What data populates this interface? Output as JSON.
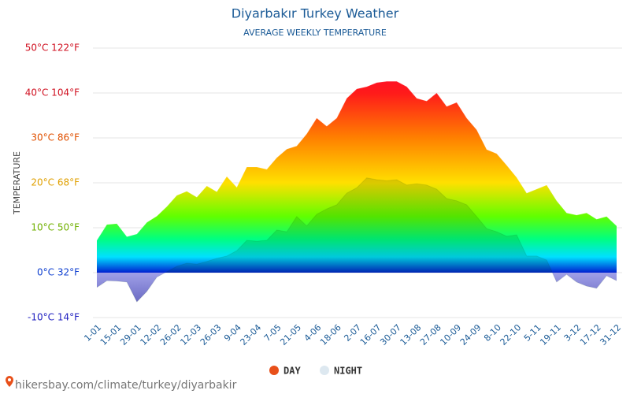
{
  "chart_data": {
    "type": "area",
    "title": "Diyarbakır Turkey Weather",
    "subtitle": "AVERAGE WEEKLY TEMPERATURE",
    "y_label": "TEMPERATURE",
    "categories": [
      "1-01",
      null,
      "15-01",
      null,
      "29-01",
      null,
      "12-02",
      null,
      "26-02",
      null,
      "12-03",
      null,
      "26-03",
      null,
      "9-04",
      null,
      "23-04",
      null,
      "7-05",
      null,
      "21-05",
      null,
      "4-06",
      null,
      "18-06",
      null,
      "2-07",
      null,
      "16-07",
      null,
      "30-07",
      null,
      "13-08",
      null,
      "27-08",
      null,
      "10-09",
      null,
      "24-09",
      null,
      "8-10",
      null,
      "22-10",
      null,
      "5-11",
      null,
      "19-11",
      null,
      "3-12",
      null,
      "17-12",
      null,
      "31-12"
    ],
    "series": [
      {
        "name": "DAY",
        "color": "#e8501a",
        "values": [
          7.2,
          10.7,
          10.9,
          8,
          8.6,
          11.2,
          12.6,
          14.7,
          17.2,
          18.1,
          16.8,
          19.3,
          18,
          21.4,
          19,
          23.5,
          23.5,
          23,
          25.6,
          27.5,
          28.2,
          30.9,
          34.4,
          32.6,
          34.4,
          38.8,
          40.9,
          41.4,
          42.3,
          42.6,
          42.6,
          41.4,
          38.8,
          38.2,
          40,
          37,
          37.9,
          34.4,
          31.8,
          27.4,
          26.5,
          23.9,
          21.2,
          17.7,
          18.6,
          19.5,
          16,
          13.3,
          12.8,
          13.3,
          11.9,
          12.5,
          10.4
        ]
      },
      {
        "name": "NIGHT",
        "color": "#dde8f0",
        "values": [
          -3.3,
          -1.8,
          -1.9,
          -2.1,
          -6.5,
          -4.2,
          -1,
          0.2,
          1.4,
          2.1,
          1.9,
          2.5,
          3.2,
          3.7,
          4.9,
          7.2,
          7,
          7.2,
          9.5,
          9.1,
          12.5,
          10.4,
          13,
          14.2,
          15.1,
          17.7,
          18.9,
          21.1,
          20.7,
          20.5,
          20.7,
          19.5,
          19.8,
          19.5,
          18.6,
          16.5,
          16,
          15.1,
          12.5,
          9.8,
          9.1,
          8.1,
          8.4,
          3.7,
          3.7,
          2.8,
          -2.1,
          -0.4,
          -2.1,
          -3,
          -3.5,
          -0.7,
          -1.8
        ]
      }
    ],
    "ylim": [
      -10,
      50
    ],
    "yticks": [
      {
        "value": -10,
        "label": "-10°C 14°F"
      },
      {
        "value": 0,
        "label": "0°C 32°F"
      },
      {
        "value": 10,
        "label": "10°C 50°F"
      },
      {
        "value": 20,
        "label": "20°C 68°F"
      },
      {
        "value": 30,
        "label": "30°C 86°F"
      },
      {
        "value": 40,
        "label": "40°C 104°F"
      },
      {
        "value": 50,
        "label": "50°C 122°F"
      }
    ],
    "ytick_colors": [
      "#2020c0",
      "#1040d0",
      "#70b000",
      "#e0a000",
      "#e05000",
      "#d01020",
      "#d01020"
    ],
    "grid": true,
    "legend": "bottom",
    "source": "hikersbay.com/climate/turkey/diyarbakir"
  }
}
